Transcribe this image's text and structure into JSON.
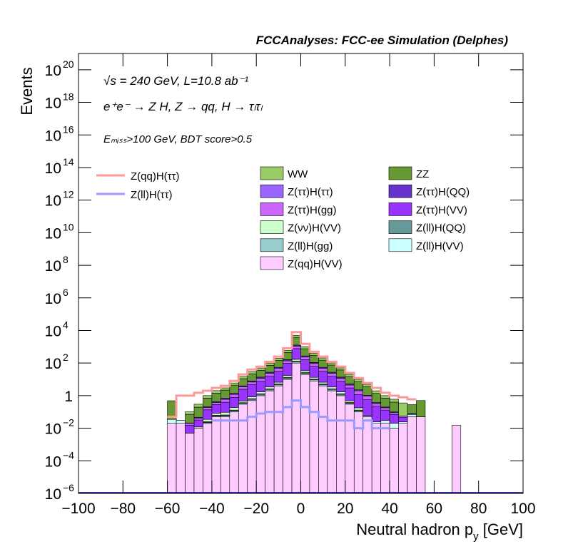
{
  "chart_data": {
    "type": "stacked_histogram",
    "title": "FCCAnalyses: FCC-ee Simulation (Delphes)",
    "annotations": [
      "√s = 240 GeV, L=10.8 ab⁻¹",
      "e⁺e⁻ → Z H, Z → qq, H → τₗτₗ",
      "Eₘᵢₛₛ>100 GeV, BDT score>0.5"
    ],
    "ylabel": "Events",
    "xlabel": [
      "Neutral hadron p",
      "y",
      " [GeV]"
    ],
    "log_y": true,
    "xlim": [
      -100,
      100
    ],
    "ylim": [
      1e-06,
      1e+21
    ],
    "xticks": [
      {
        "value": -100,
        "label": "−100"
      },
      {
        "value": -80,
        "label": "−80"
      },
      {
        "value": -60,
        "label": "−60"
      },
      {
        "value": -40,
        "label": "−40"
      },
      {
        "value": -20,
        "label": "−20"
      },
      0,
      20,
      40,
      60,
      80,
      100
    ],
    "yticks": [
      {
        "value": 1e-06,
        "label": "10",
        "power": "−6"
      },
      {
        "value": 0.0001,
        "label": "10",
        "power": "−4"
      },
      {
        "value": 0.01,
        "label": "10",
        "power": "−2"
      },
      1,
      {
        "value": 100,
        "label": "10",
        "power": "2"
      },
      {
        "value": 10000,
        "label": "10",
        "power": "4"
      },
      {
        "value": 1000000.0,
        "label": "10",
        "power": "6"
      },
      {
        "value": 100000000.0,
        "label": "10",
        "power": "8"
      },
      {
        "value": 10000000000.0,
        "label": "10",
        "power": "10"
      },
      {
        "value": 1000000000000.0,
        "label": "10",
        "power": "12"
      },
      {
        "value": 100000000000000.0,
        "label": "10",
        "power": "14"
      },
      {
        "value": 1e+16,
        "label": "10",
        "power": "16"
      },
      {
        "value": 1e+18,
        "label": "10",
        "power": "18"
      },
      {
        "value": 1e+20,
        "label": "10",
        "power": "20"
      }
    ],
    "bins": [
      -60,
      -56,
      -52,
      -48,
      -44,
      -40,
      -36,
      -32,
      -28,
      -24,
      -20,
      -16,
      -12,
      -8,
      -4,
      0,
      4,
      8,
      12,
      16,
      20,
      24,
      28,
      32,
      36,
      40,
      44,
      48,
      52,
      56,
      60,
      64,
      68,
      72,
      76,
      80
    ],
    "series": [
      {
        "name": "WW",
        "color": "#99cc66",
        "values": [
          0,
          0,
          0.03,
          0.1,
          0.3,
          0.6,
          0.8,
          1.6,
          4,
          8,
          14,
          28,
          55,
          160,
          1300,
          260,
          110,
          55,
          26,
          13,
          6,
          2.8,
          1.4,
          0.6,
          0.3,
          0.2,
          0.3,
          0,
          0,
          0,
          0,
          0,
          0,
          0,
          0
        ]
      },
      {
        "name": "ZZ",
        "color": "#669933",
        "values": [
          0.45,
          0,
          0.05,
          0.15,
          0.5,
          1,
          1.5,
          3,
          7,
          14,
          22,
          45,
          90,
          280,
          2500,
          480,
          190,
          95,
          48,
          24,
          9,
          5,
          2.5,
          1,
          0.5,
          0.3,
          0,
          0.2,
          0.45,
          0,
          0,
          0,
          0,
          0,
          0
        ]
      },
      {
        "name": "Z(ττ)H(ττ)",
        "color": "#9966ff",
        "values": [
          0,
          0,
          0,
          0,
          0,
          0,
          0,
          0,
          0.01,
          0.01,
          0.02,
          0.03,
          0.04,
          0.05,
          0.1,
          0.05,
          0.03,
          0.02,
          0.01,
          0.01,
          0,
          0,
          0,
          0,
          0,
          0,
          0,
          0,
          0,
          0,
          0,
          0,
          0,
          0,
          0
        ]
      },
      {
        "name": "Z(ττ)H(QQ)",
        "color": "#6633cc",
        "values": [
          0,
          0.0001,
          0.001,
          0.005,
          0.02,
          0.05,
          0.1,
          0.2,
          0.5,
          1,
          2,
          4,
          8,
          25,
          200,
          40,
          15,
          8,
          4,
          2,
          0.8,
          0.3,
          0.1,
          0.05,
          0.02,
          0.01,
          0.0001,
          0.0002,
          0.0001,
          0,
          0,
          0,
          0,
          0,
          0
        ]
      },
      {
        "name": "Z(ττ)H(gg)",
        "color": "#cc66ff",
        "values": [
          0,
          0,
          0.005,
          0.01,
          0.05,
          0.1,
          0.2,
          0.4,
          1,
          2,
          4,
          8,
          15,
          40,
          300,
          70,
          30,
          15,
          8,
          4,
          1.5,
          0.8,
          0.4,
          0.1,
          0.05,
          0.02,
          0.01,
          0,
          0,
          0,
          0,
          0,
          0,
          0,
          0
        ]
      },
      {
        "name": "Z(ττ)H(VV)",
        "color": "#9933ff",
        "values": [
          0,
          0,
          0.01,
          0.02,
          0.1,
          0.2,
          0.3,
          0.6,
          2,
          4,
          6,
          12,
          25,
          80,
          600,
          130,
          50,
          25,
          12,
          6,
          2.5,
          1,
          0.5,
          0.2,
          0.1,
          0.05,
          0.02,
          0.01,
          0,
          0,
          0,
          0,
          0,
          0,
          0
        ]
      },
      {
        "name": "Z(νν)H(VV)",
        "color": "#ccffcc",
        "values": [
          0,
          0,
          0,
          0.002,
          0.01,
          0.02,
          0.03,
          0.06,
          0.1,
          0.2,
          0.4,
          0.8,
          1.5,
          4,
          40,
          8,
          3,
          1.5,
          0.8,
          0.4,
          0.1,
          0.05,
          0,
          0,
          0,
          0,
          0,
          0,
          0,
          0,
          0,
          0,
          0,
          0,
          0
        ]
      },
      {
        "name": "Z(ll)H(QQ)",
        "color": "#669999",
        "values": [
          0,
          0,
          0,
          0,
          0.001,
          0.002,
          0.005,
          0.01,
          0.02,
          0.05,
          0.1,
          0.2,
          0.4,
          1,
          10,
          2,
          0.8,
          0.4,
          0.2,
          0.1,
          0.03,
          0.01,
          0,
          0,
          0,
          0,
          0,
          0,
          0,
          0,
          0,
          0,
          0,
          0,
          0
        ]
      },
      {
        "name": "Z(ll)H(gg)",
        "color": "#99cccc",
        "values": [
          0,
          0,
          0,
          0,
          0.002,
          0.005,
          0.01,
          0.02,
          0.05,
          0.1,
          0.2,
          0.4,
          0.8,
          2,
          20,
          4,
          1.5,
          0.8,
          0.4,
          0.2,
          0.05,
          0.02,
          0.01,
          0,
          0,
          0,
          0,
          0,
          0,
          0,
          0,
          0,
          0,
          0,
          0
        ]
      },
      {
        "name": "Z(ll)H(VV)",
        "color": "#ccffff",
        "values": [
          0.015,
          0.01,
          0,
          0,
          0.002,
          0.005,
          0,
          0,
          0,
          0,
          0,
          0,
          0,
          0,
          0,
          0,
          0,
          0,
          0,
          0,
          0,
          0,
          0,
          0.005,
          0.01,
          0.01,
          0.005,
          0.02,
          0,
          0,
          0,
          0,
          0,
          0,
          0
        ]
      },
      {
        "name": "Z(qq)H(VV)",
        "color": "#ffccff",
        "values": [
          0.02,
          0.02,
          0.005,
          0.01,
          0.02,
          0.05,
          0.05,
          0.1,
          0.3,
          0.5,
          1,
          2,
          4,
          10,
          100,
          20,
          8,
          4,
          2,
          1,
          0.3,
          0.1,
          0.05,
          0.02,
          0.02,
          0.01,
          0.02,
          0.05,
          0.05,
          0,
          0,
          0,
          0.015,
          0,
          0
        ]
      }
    ],
    "lines": [
      {
        "name": "Z(qq)H(ττ)",
        "color": "#ff9999",
        "values": [
          0.05,
          1,
          1,
          1.5,
          2,
          3,
          4,
          8,
          20,
          40,
          60,
          120,
          250,
          800,
          8000,
          1500,
          500,
          250,
          120,
          60,
          25,
          12,
          6,
          3,
          1.5,
          1,
          0.8,
          0.6,
          null,
          null,
          null,
          null,
          null,
          null,
          null
        ]
      },
      {
        "name": "Z(ll)H(ττ)",
        "color": "#9999ff",
        "values": [
          null,
          null,
          null,
          null,
          null,
          0.03,
          0.03,
          0.03,
          0.03,
          0.05,
          0.08,
          0.1,
          0.1,
          0.2,
          0.5,
          0.2,
          0.1,
          0.05,
          0.03,
          0.03,
          0.03,
          0.01,
          0.03,
          0.01,
          0.01,
          null,
          null,
          null,
          null,
          null,
          null,
          null,
          null,
          null,
          null
        ]
      }
    ]
  }
}
